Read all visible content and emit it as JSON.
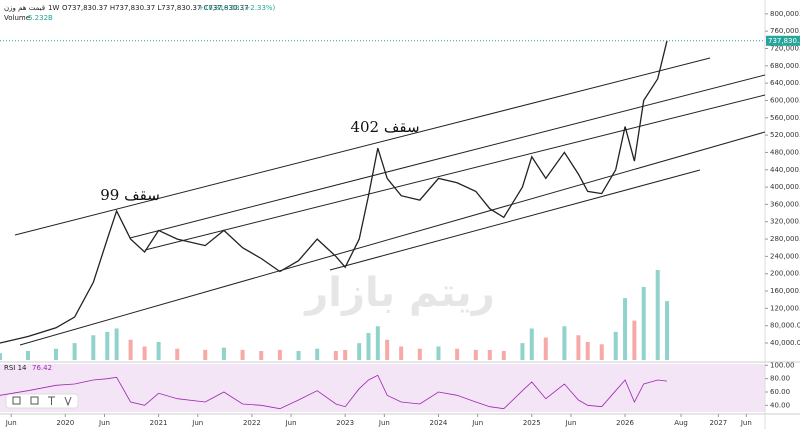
{
  "chart_data": {
    "type": "line",
    "header": {
      "symbol": "قیمت هم وزن",
      "interval": "1W",
      "ohlc": "O737,830.37 H737,830.37 L737,830.37 C737,830.37",
      "change": "+16,810.68 (+2.33%)",
      "volume_label": "Volume",
      "volume_total": "5.232B"
    },
    "annotations": [
      "سقف 99",
      "سقف 402"
    ],
    "watermark": "ریتم بازار",
    "last_price_label": "737,830.37",
    "rsi_label": "RSI 14",
    "rsi_value": "76.42",
    "color": "#222222",
    "up_color": "#26a69a",
    "down_color": "#ef5350",
    "rsi_color": "#9c27b0",
    "x": [
      2019.3,
      2019.6,
      2019.9,
      2020.1,
      2020.3,
      2020.45,
      2020.55,
      2020.7,
      2020.85,
      2021.0,
      2021.2,
      2021.5,
      2021.7,
      2021.9,
      2022.1,
      2022.3,
      2022.5,
      2022.7,
      2022.9,
      2023.0,
      2023.15,
      2023.25,
      2023.35,
      2023.45,
      2023.6,
      2023.8,
      2024.0,
      2024.2,
      2024.4,
      2024.55,
      2024.7,
      2024.9,
      2025.0,
      2025.15,
      2025.35,
      2025.5,
      2025.6,
      2025.75,
      2025.9,
      2026.0,
      2026.1,
      2026.2,
      2026.35,
      2026.45
    ],
    "values": [
      40000,
      55000,
      75000,
      100000,
      180000,
      280000,
      345000,
      280000,
      250000,
      300000,
      280000,
      265000,
      300000,
      260000,
      235000,
      205000,
      230000,
      280000,
      240000,
      215000,
      280000,
      380000,
      490000,
      420000,
      380000,
      370000,
      420000,
      410000,
      390000,
      350000,
      330000,
      400000,
      470000,
      420000,
      480000,
      430000,
      390000,
      385000,
      440000,
      540000,
      460000,
      600000,
      650000,
      737830.37
    ],
    "volume": [
      0.6,
      0.8,
      1.0,
      1.5,
      2.2,
      2.5,
      2.8,
      1.8,
      1.2,
      1.6,
      1.0,
      0.9,
      1.1,
      0.9,
      0.8,
      0.9,
      0.8,
      1.0,
      0.8,
      0.9,
      1.5,
      2.4,
      3.0,
      1.8,
      1.2,
      1.0,
      1.2,
      1.0,
      0.9,
      0.9,
      0.8,
      1.5,
      2.8,
      2.0,
      3.0,
      2.2,
      1.6,
      1.4,
      2.5,
      5.5,
      3.5,
      6.5,
      8.0,
      5.232
    ],
    "rsi": [
      55,
      62,
      70,
      72,
      78,
      80,
      82,
      45,
      40,
      58,
      50,
      45,
      60,
      42,
      40,
      35,
      48,
      62,
      42,
      38,
      65,
      78,
      85,
      55,
      45,
      42,
      60,
      55,
      45,
      38,
      35,
      62,
      75,
      50,
      72,
      48,
      40,
      38,
      62,
      78,
      45,
      72,
      78,
      76.42
    ],
    "ylim": [
      730,
      832000
    ],
    "yticks": [
      {
        "value": 40000,
        "label": "40,000.00"
      },
      {
        "value": 80000,
        "label": "80,000.00"
      },
      {
        "value": 120000,
        "label": "120,000.00"
      },
      {
        "value": 160000,
        "label": "160,000.00"
      },
      {
        "value": 200000,
        "label": "200,000.00"
      },
      {
        "value": 240000,
        "label": "240,000.00"
      },
      {
        "value": 280000,
        "label": "280,000.00"
      },
      {
        "value": 320000,
        "label": "320,000.00"
      },
      {
        "value": 360000,
        "label": "360,000.00"
      },
      {
        "value": 400000,
        "label": "400,000.00"
      },
      {
        "value": 440000,
        "label": "440,000.00"
      },
      {
        "value": 480000,
        "label": "480,000.00"
      },
      {
        "value": 520000,
        "label": "520,000.00"
      },
      {
        "value": 560000,
        "label": "560,000.00"
      },
      {
        "value": 600000,
        "label": "600,000.00"
      },
      {
        "value": 640000,
        "label": "640,000.00"
      },
      {
        "value": 680000,
        "label": "680,000.00"
      },
      {
        "value": 720000,
        "label": "720,000.00"
      },
      {
        "value": 760000,
        "label": "760,000.00"
      },
      {
        "value": 800000,
        "label": "800,000.00"
      }
    ],
    "rsi_lim": [
      30,
      102
    ],
    "rsi_ticks": [
      {
        "value": 40,
        "label": "40.00"
      },
      {
        "value": 60,
        "label": "60.00"
      },
      {
        "value": 80,
        "label": "80.00"
      },
      {
        "value": 100,
        "label": "100.00"
      }
    ],
    "xlim": [
      2019.3,
      2027.5
    ],
    "xticks": [
      {
        "value": 2019.42,
        "label": "Jun"
      },
      2020,
      {
        "value": 2020.42,
        "label": "Jun"
      },
      2021,
      {
        "value": 2021.42,
        "label": "Jun"
      },
      2022,
      {
        "value": 2022.42,
        "label": "Jun"
      },
      2023,
      {
        "value": 2023.42,
        "label": "Jun"
      },
      2024,
      {
        "value": 2024.42,
        "label": "Jun"
      },
      2025,
      {
        "value": 2025.42,
        "label": "Jun"
      },
      2026,
      {
        "value": 2026.6,
        "label": "Aug"
      },
      2027,
      {
        "value": 2027.3,
        "label": "Jun"
      }
    ]
  }
}
